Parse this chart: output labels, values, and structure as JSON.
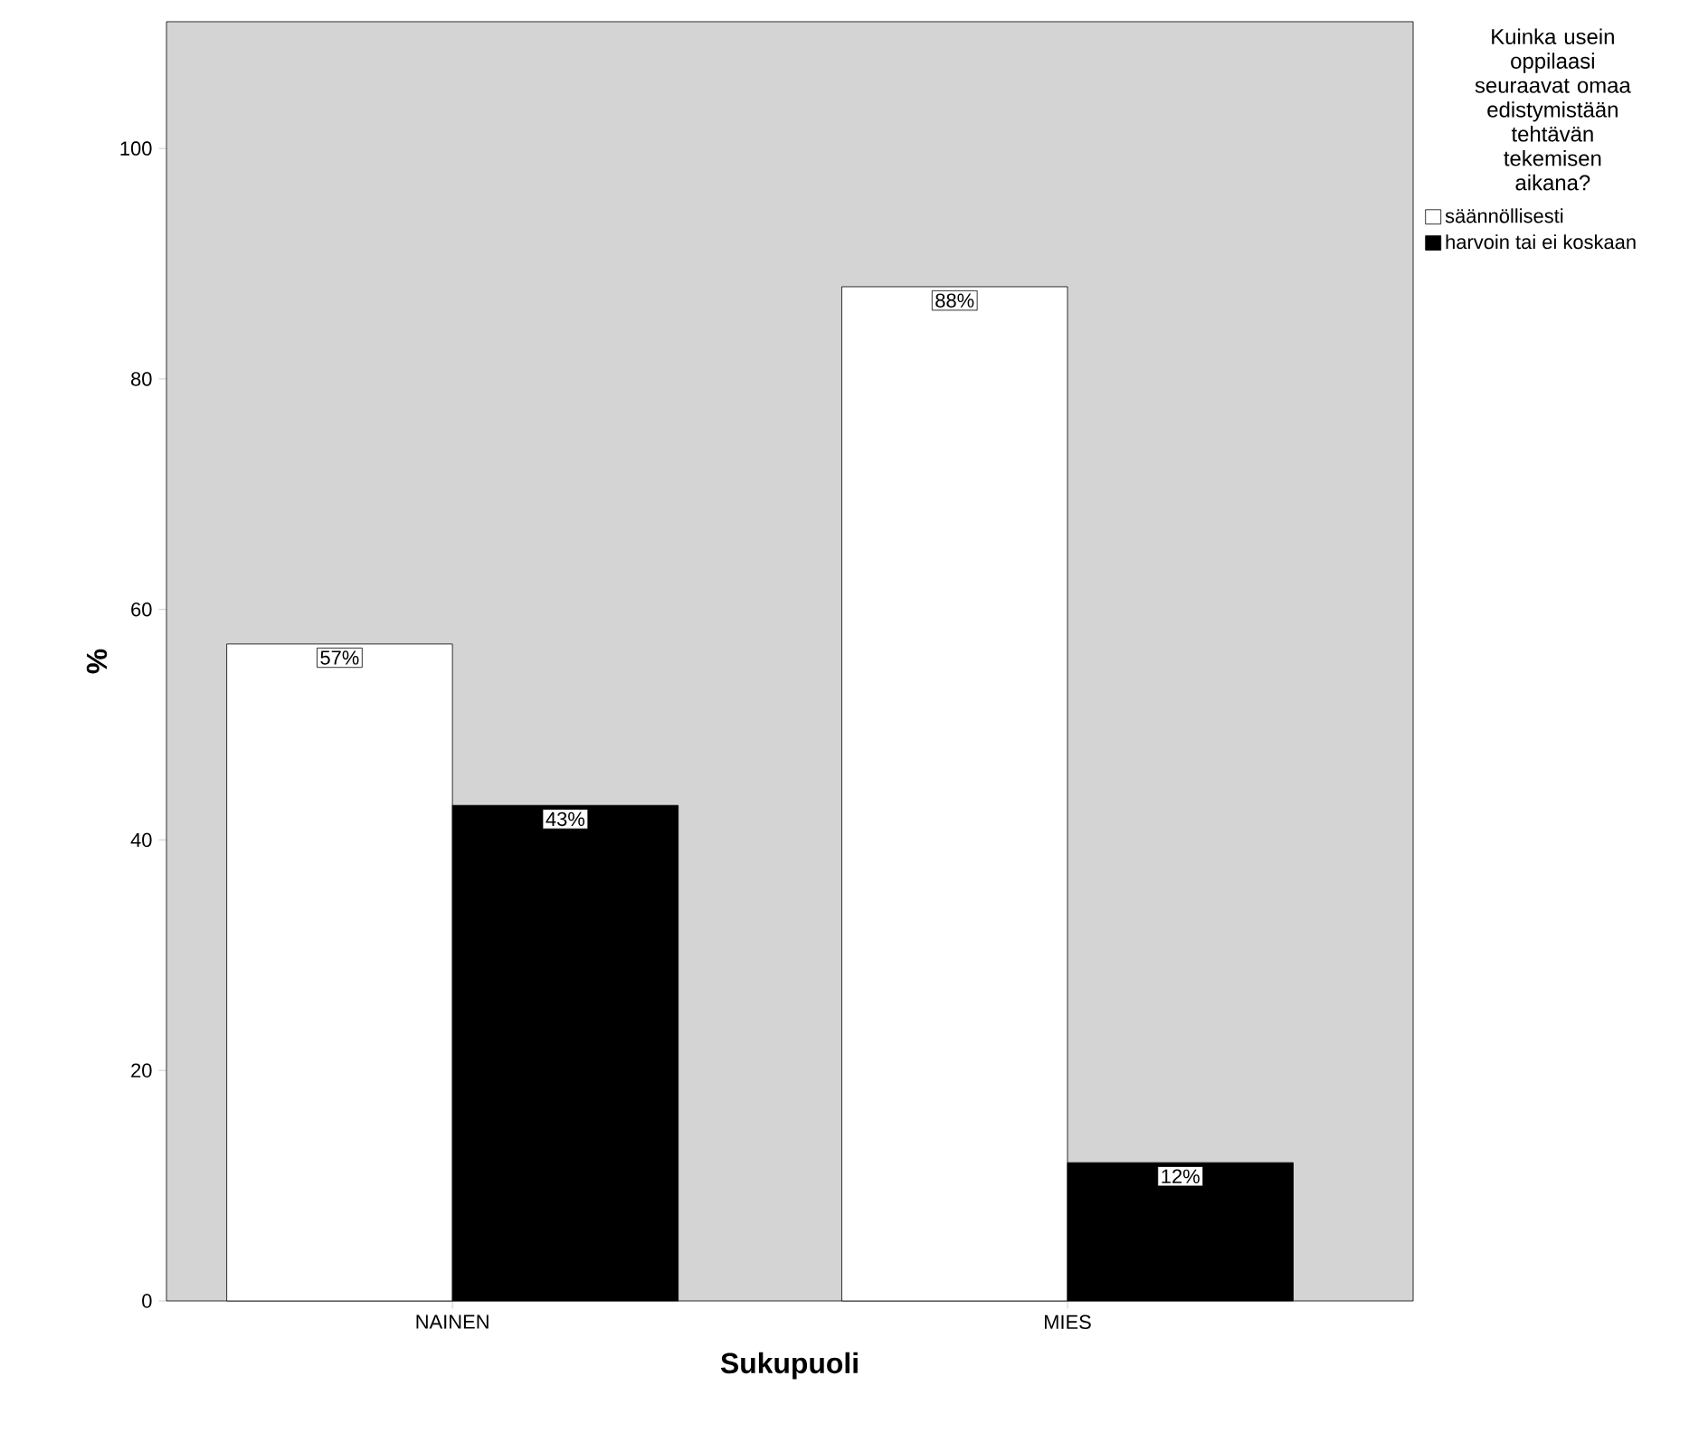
{
  "chart_data": {
    "type": "bar",
    "xlabel": "Sukupuoli",
    "ylabel": "%",
    "legend_title": "Kuinka usein oppilaasi seuraavat omaa edistymistään tehtävän tekemisen aikana?",
    "categories": [
      "NAINEN",
      "MIES"
    ],
    "series": [
      {
        "name": "säännöllisesti",
        "color": "#ffffff",
        "values": [
          57,
          88
        ],
        "value_labels": [
          "57%",
          "88%"
        ]
      },
      {
        "name": "harvoin tai ei koskaan",
        "color": "#000000",
        "values": [
          43,
          12
        ],
        "value_labels": [
          "43%",
          "12%"
        ]
      }
    ],
    "ylim": [
      0,
      111
    ],
    "yticks": [
      0,
      20,
      40,
      60,
      80,
      100
    ],
    "legend": "right",
    "grid": false
  }
}
